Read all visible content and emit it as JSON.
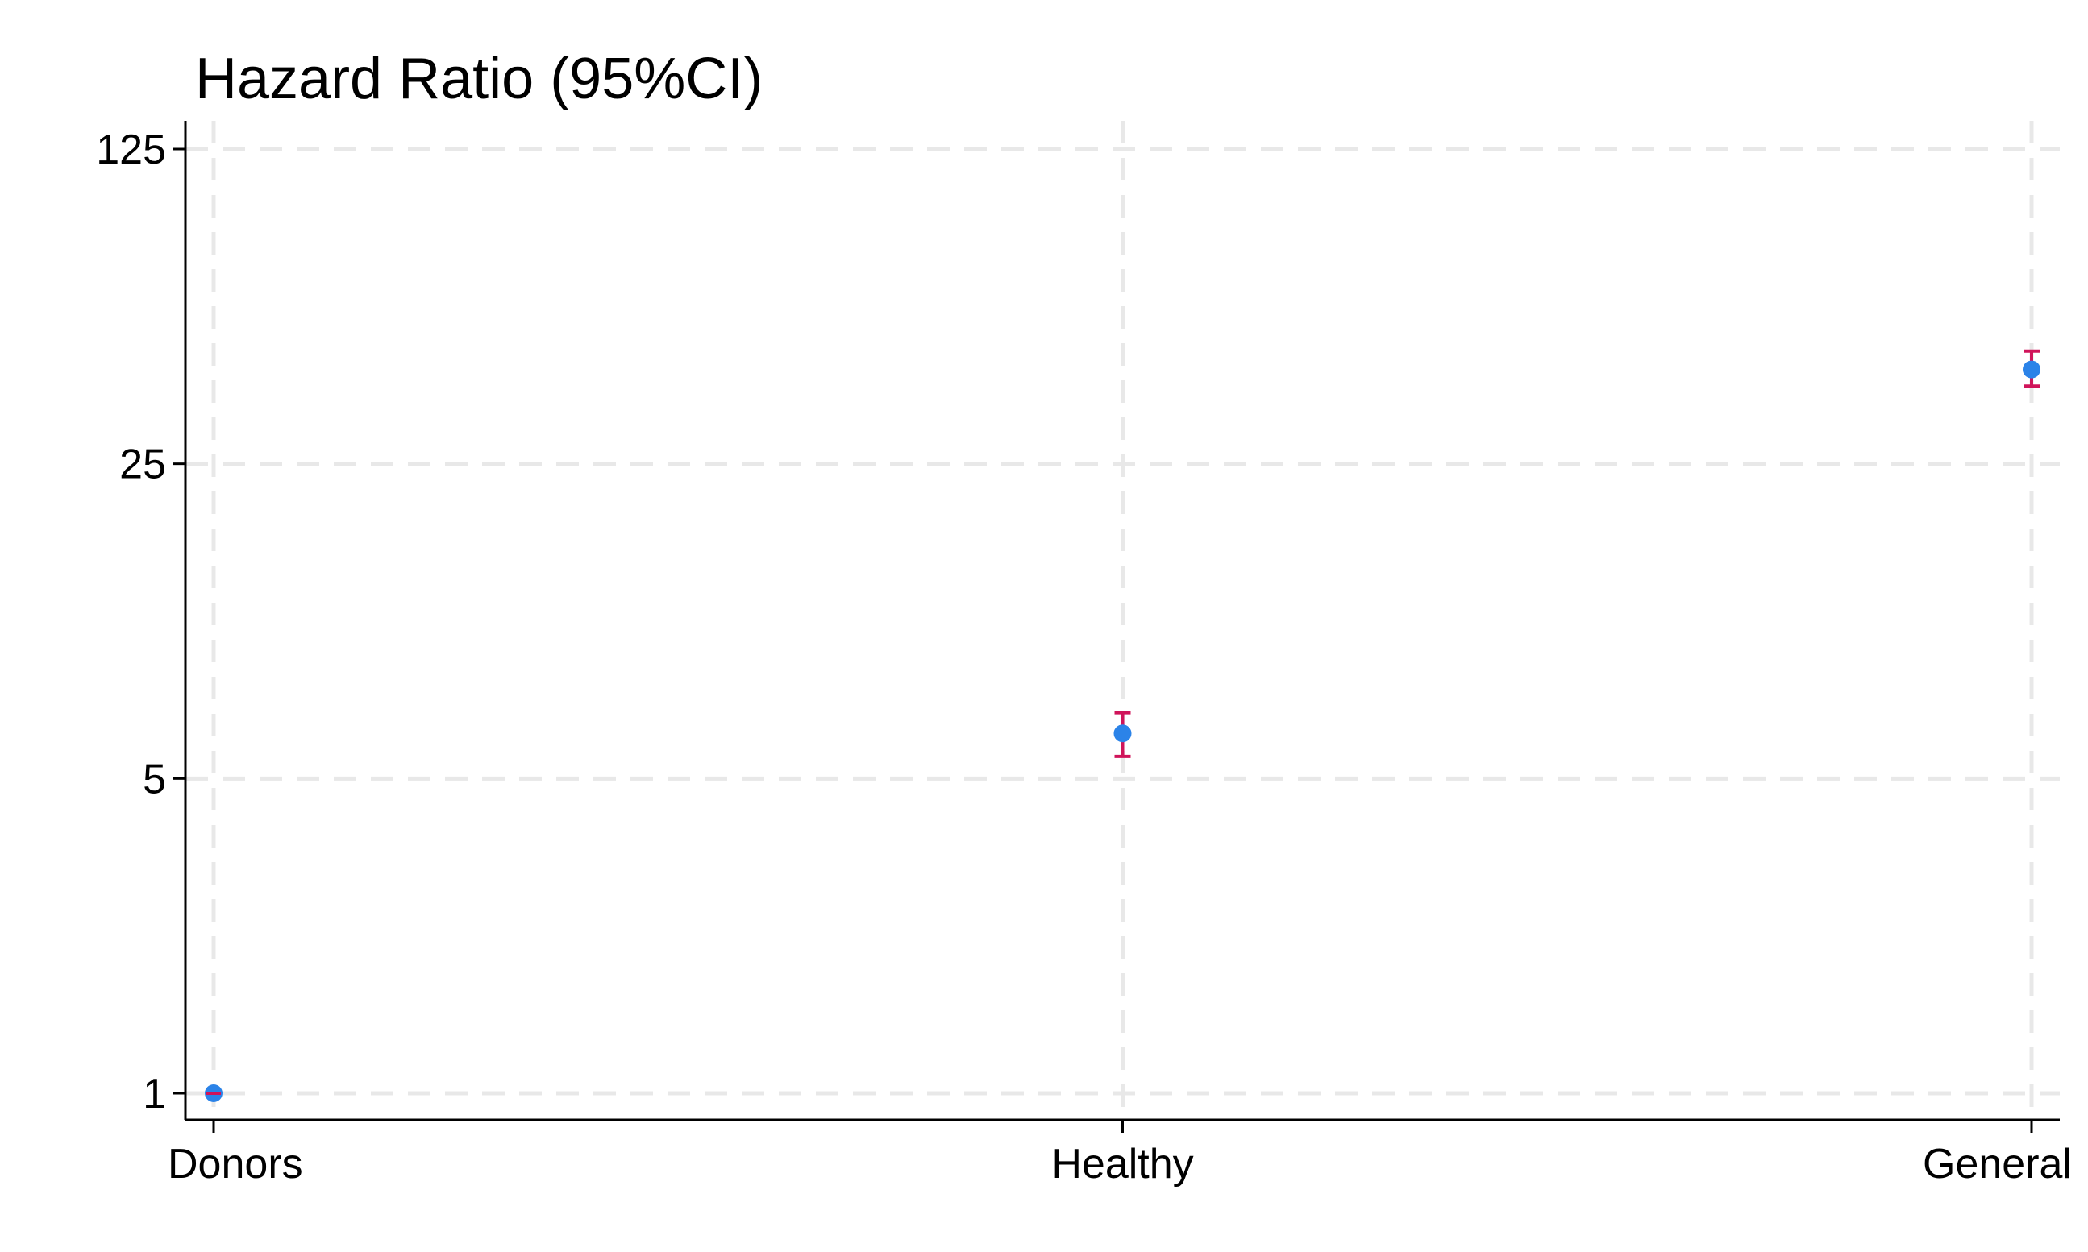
{
  "chart_data": {
    "type": "scatter",
    "title": "Hazard Ratio (95%CI)",
    "xlabel": "",
    "ylabel": "",
    "y_scale": "log",
    "y_ticks": [
      1,
      5,
      25,
      125
    ],
    "y_tick_labels": [
      "1",
      "5",
      "25",
      "125"
    ],
    "ylim": [
      1,
      125
    ],
    "categories": [
      "Donors",
      "Healthy",
      "General"
    ],
    "series": [
      {
        "values": [
          1.0,
          6.3,
          40.5
        ],
        "ci_lower": [
          1.0,
          5.6,
          37.2
        ],
        "ci_upper": [
          1.0,
          7.0,
          44.5
        ]
      }
    ],
    "grid": true,
    "legend": "none",
    "colors": {
      "point": "#2b83e8",
      "ci": "#d0145a",
      "grid": "#e8e8e8",
      "axis": "#000000"
    }
  }
}
